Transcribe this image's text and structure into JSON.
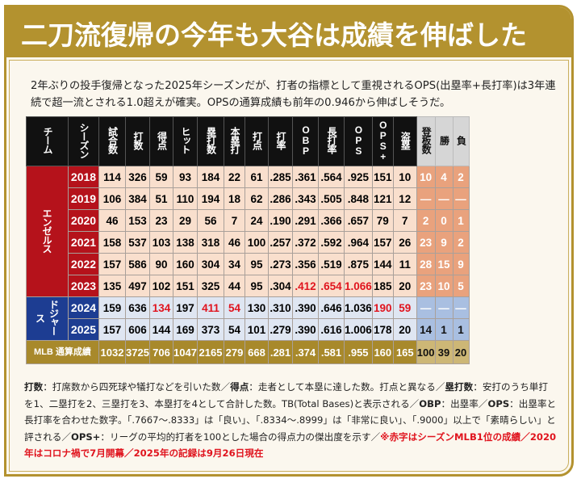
{
  "title": "二刀流復帰の今年も大谷は成績を伸ばした",
  "lead": "2年ぶりの投手復帰となった2025年シーズンだが、打者の指標として重視されるOPS(出塁率+長打率)は3年連続で超一流とされる1.0超えが確実。OPSの通算成績も前年の0.946から伸ばしそうだ。",
  "table": {
    "batting_headers": [
      "チーム",
      "シーズン",
      "試合数",
      "打数",
      "得点",
      "ヒット",
      "塁打数",
      "本塁打",
      "打点",
      "打率",
      "OBP",
      "長打率",
      "OPS",
      "OPS+",
      "盗塁"
    ],
    "pitching_headers": [
      "登板数",
      "勝",
      "負"
    ],
    "teams": [
      {
        "name": "エンゼルス",
        "key": "angels",
        "rows": 6
      },
      {
        "name": "ドジャース",
        "key": "dodgers",
        "rows": 2
      }
    ],
    "rows": [
      {
        "season": "2018",
        "team": "angels",
        "batting": [
          "114",
          "326",
          "59",
          "93",
          "184",
          "22",
          "61",
          ".285",
          ".361",
          ".564",
          ".925",
          "151",
          "10"
        ],
        "pitching": [
          "10",
          "4",
          "2"
        ],
        "red": []
      },
      {
        "season": "2019",
        "team": "angels",
        "batting": [
          "106",
          "384",
          "51",
          "110",
          "194",
          "18",
          "62",
          ".286",
          ".343",
          ".505",
          ".848",
          "121",
          "12"
        ],
        "pitching": [
          "—",
          "—",
          "—"
        ],
        "red": []
      },
      {
        "season": "2020",
        "team": "angels",
        "batting": [
          "46",
          "153",
          "23",
          "29",
          "56",
          "7",
          "24",
          ".190",
          ".291",
          ".366",
          ".657",
          "79",
          "7"
        ],
        "pitching": [
          "2",
          "0",
          "1"
        ],
        "red": []
      },
      {
        "season": "2021",
        "team": "angels",
        "batting": [
          "158",
          "537",
          "103",
          "138",
          "318",
          "46",
          "100",
          ".257",
          ".372",
          ".592",
          ".964",
          "157",
          "26"
        ],
        "pitching": [
          "23",
          "9",
          "2"
        ],
        "red": []
      },
      {
        "season": "2022",
        "team": "angels",
        "batting": [
          "157",
          "586",
          "90",
          "160",
          "304",
          "34",
          "95",
          ".273",
          ".356",
          ".519",
          ".875",
          "144",
          "11"
        ],
        "pitching": [
          "28",
          "15",
          "9"
        ],
        "red": []
      },
      {
        "season": "2023",
        "team": "angels",
        "batting": [
          "135",
          "497",
          "102",
          "151",
          "325",
          "44",
          "95",
          ".304",
          ".412",
          ".654",
          "1.066",
          "185",
          "20"
        ],
        "pitching": [
          "23",
          "10",
          "5"
        ],
        "red": [
          8,
          9,
          10
        ]
      },
      {
        "season": "2024",
        "team": "dodgers",
        "batting": [
          "159",
          "636",
          "134",
          "197",
          "411",
          "54",
          "130",
          ".310",
          ".390",
          ".646",
          "1.036",
          "190",
          "59"
        ],
        "pitching": [
          "—",
          "—",
          "—"
        ],
        "red": [
          2,
          4,
          5,
          11,
          12
        ]
      },
      {
        "season": "2025",
        "team": "dodgers",
        "batting": [
          "157",
          "606",
          "144",
          "169",
          "373",
          "54",
          "101",
          ".279",
          ".390",
          ".616",
          "1.006",
          "178",
          "20"
        ],
        "pitching": [
          "14",
          "1",
          "1"
        ],
        "red": []
      }
    ],
    "total": {
      "label": "MLB 通算成績",
      "batting": [
        "1032",
        "3725",
        "706",
        "1047",
        "2165",
        "279",
        "668",
        ".281",
        ".374",
        ".581",
        ".955",
        "160",
        "165"
      ],
      "pitching": [
        "100",
        "39",
        "20"
      ]
    }
  },
  "notes": [
    {
      "text": "打数",
      "style": "b"
    },
    {
      "text": "：打席数から四死球や犠打などを引いた数／",
      "style": ""
    },
    {
      "text": "得点",
      "style": "b"
    },
    {
      "text": "：走者として本塁に達した数。打点と異なる／",
      "style": ""
    },
    {
      "text": "塁打数",
      "style": "b"
    },
    {
      "text": "：安打のうち単打を1、二塁打を2、三塁打を3、本塁打を4として合計した数。TB(Total Bases)と表示される／",
      "style": ""
    },
    {
      "text": "OBP",
      "style": "b"
    },
    {
      "text": "：出塁率／",
      "style": ""
    },
    {
      "text": "OPS",
      "style": "b"
    },
    {
      "text": "：出塁率と長打率を合わせた数字。「.7667～.8333」は「良い」、「.8334～.8999」は「非常に良い」、「.9000」以上で「素晴らしい」と評される／",
      "style": ""
    },
    {
      "text": "OPS+",
      "style": "b"
    },
    {
      "text": "：リーグの平均的打者を100とした場合の得点力の傑出度を示す／",
      "style": ""
    },
    {
      "text": "※赤字はシーズンMLB1位の成績／2020年はコロナ禍で7月開幕／2025年の記録は9月26日現在",
      "style": "red"
    }
  ],
  "colors": {
    "gold": "#b3922f",
    "angels": "#b5121b",
    "dodgers": "#1d3d92",
    "red_text": "#e0141e"
  }
}
